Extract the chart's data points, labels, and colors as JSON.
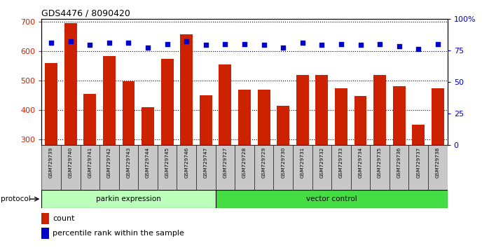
{
  "title": "GDS4476 / 8090420",
  "samples": [
    "GSM729739",
    "GSM729740",
    "GSM729741",
    "GSM729742",
    "GSM729743",
    "GSM729744",
    "GSM729745",
    "GSM729746",
    "GSM729747",
    "GSM729727",
    "GSM729728",
    "GSM729729",
    "GSM729730",
    "GSM729731",
    "GSM729732",
    "GSM729733",
    "GSM729734",
    "GSM729735",
    "GSM729736",
    "GSM729737",
    "GSM729738"
  ],
  "counts": [
    560,
    695,
    455,
    583,
    498,
    410,
    573,
    657,
    449,
    553,
    469,
    469,
    413,
    519,
    519,
    472,
    448,
    518,
    481,
    350,
    472
  ],
  "percentiles": [
    81,
    82,
    79,
    81,
    81,
    77,
    80,
    82,
    79,
    80,
    80,
    79,
    77,
    81,
    79,
    80,
    79,
    80,
    78,
    76,
    80
  ],
  "group1_label": "parkin expression",
  "group1_count": 9,
  "group2_label": "vector control",
  "group2_count": 12,
  "protocol_label": "protocol",
  "ylim_left": [
    280,
    710
  ],
  "ylim_right": [
    0,
    100
  ],
  "yticks_left": [
    300,
    400,
    500,
    600,
    700
  ],
  "yticks_right": [
    0,
    25,
    50,
    75,
    100
  ],
  "bar_color": "#CC2200",
  "dot_color": "#0000CC",
  "bg_color": "#FFFFFF",
  "tick_area_color": "#C8C8C8",
  "group1_color": "#BBFFBB",
  "group2_color": "#44DD44",
  "legend_bar_label": "count",
  "legend_dot_label": "percentile rank within the sample"
}
